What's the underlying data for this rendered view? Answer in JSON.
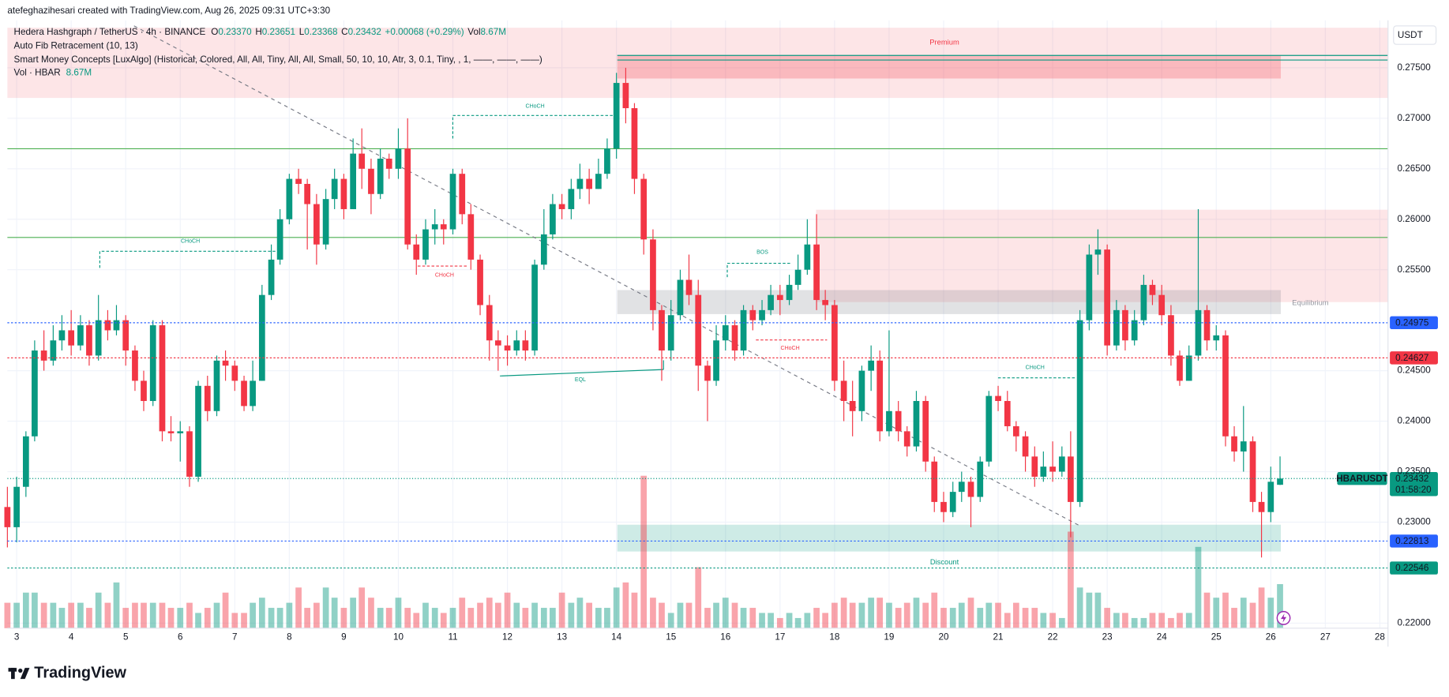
{
  "header": {
    "credit": "atefeghazihesari created with TradingView.com, Aug 26, 2025 09:31 UTC+3:30",
    "symbol": "Hedera Hashgraph / TetherUS · 4h · BINANCE",
    "ohlc": [
      {
        "label": "O",
        "value": "0.23370"
      },
      {
        "label": "H",
        "value": "0.23651"
      },
      {
        "label": "L",
        "value": "0.23368"
      },
      {
        "label": "C",
        "value": "0.23432"
      }
    ],
    "change": "+0.00068 (+0.29%)",
    "vol_label": "Vol",
    "vol": "8.67M",
    "indicators": [
      "Auto Fib Retracement (10, 13)",
      "Smart Money Concepts [LuxAlgo] (Historical, Colored, All, All, Tiny, All, All, Small, 50, 10, 10, Atr, 3, 0.1, Tiny, , 1, ——, ——, ——)"
    ],
    "vol_indicator": "Vol · HBAR",
    "vol_indicator_value": "8.67M",
    "currency": "USDT",
    "brand": "TradingView"
  },
  "chart_data": {
    "type": "candlestick",
    "colors": {
      "up": "#089981",
      "down": "#f23645"
    },
    "xlim": [
      2.83,
      28.15
    ],
    "xticks": [
      3,
      4,
      5,
      6,
      7,
      8,
      9,
      10,
      11,
      12,
      13,
      14,
      15,
      16,
      17,
      18,
      19,
      20,
      21,
      22,
      23,
      24,
      25,
      26,
      27,
      28
    ],
    "ylim": [
      0.2195,
      0.2797
    ],
    "yticks": [
      {
        "value": 0.22,
        "label": "0.22000"
      },
      {
        "value": 0.23,
        "label": "0.23000"
      },
      {
        "value": 0.235,
        "label": "0.23500"
      },
      {
        "value": 0.24,
        "label": "0.24000"
      },
      {
        "value": 0.245,
        "label": "0.24500"
      },
      {
        "value": 0.255,
        "label": "0.25500"
      },
      {
        "value": 0.26,
        "label": "0.26000"
      },
      {
        "value": 0.265,
        "label": "0.26500"
      },
      {
        "value": 0.27,
        "label": "0.27000"
      },
      {
        "value": 0.275,
        "label": "0.27500"
      }
    ],
    "grid": true,
    "candles": [
      [
        2.83,
        0.2315,
        0.2335,
        0.2275,
        0.2295
      ],
      [
        3,
        0.2295,
        0.2345,
        0.228,
        0.2335
      ],
      [
        3.17,
        0.2335,
        0.239,
        0.2325,
        0.2385
      ],
      [
        3.33,
        0.2385,
        0.248,
        0.238,
        0.247
      ],
      [
        3.5,
        0.247,
        0.249,
        0.245,
        0.246
      ],
      [
        3.67,
        0.246,
        0.2495,
        0.2455,
        0.248
      ],
      [
        3.83,
        0.248,
        0.2505,
        0.247,
        0.249
      ],
      [
        4,
        0.249,
        0.251,
        0.2465,
        0.2475
      ],
      [
        4.17,
        0.2475,
        0.2505,
        0.247,
        0.2495
      ],
      [
        4.33,
        0.2495,
        0.25,
        0.2455,
        0.2465
      ],
      [
        4.5,
        0.2465,
        0.2525,
        0.246,
        0.25
      ],
      [
        4.67,
        0.25,
        0.251,
        0.248,
        0.249
      ],
      [
        4.83,
        0.249,
        0.2515,
        0.2485,
        0.25
      ],
      [
        5,
        0.25,
        0.2505,
        0.2455,
        0.247
      ],
      [
        5.17,
        0.247,
        0.2475,
        0.243,
        0.244
      ],
      [
        5.33,
        0.244,
        0.245,
        0.241,
        0.242
      ],
      [
        5.5,
        0.242,
        0.25,
        0.2415,
        0.2495
      ],
      [
        5.67,
        0.2495,
        0.25,
        0.238,
        0.239
      ],
      [
        5.83,
        0.239,
        0.2405,
        0.238,
        0.2388
      ],
      [
        6,
        0.2388,
        0.24,
        0.236,
        0.239
      ],
      [
        6.17,
        0.239,
        0.2395,
        0.2335,
        0.2345
      ],
      [
        6.33,
        0.2345,
        0.244,
        0.234,
        0.2435
      ],
      [
        6.5,
        0.2435,
        0.2445,
        0.24,
        0.241
      ],
      [
        6.67,
        0.241,
        0.2465,
        0.2405,
        0.246
      ],
      [
        6.83,
        0.246,
        0.247,
        0.244,
        0.2455
      ],
      [
        7,
        0.2455,
        0.246,
        0.243,
        0.244
      ],
      [
        7.17,
        0.244,
        0.2445,
        0.241,
        0.2415
      ],
      [
        7.33,
        0.2415,
        0.246,
        0.241,
        0.244
      ],
      [
        7.5,
        0.244,
        0.2535,
        0.244,
        0.2525
      ],
      [
        7.67,
        0.2525,
        0.2575,
        0.252,
        0.256
      ],
      [
        7.83,
        0.256,
        0.261,
        0.2555,
        0.26
      ],
      [
        8,
        0.26,
        0.2645,
        0.2595,
        0.264
      ],
      [
        8.17,
        0.264,
        0.265,
        0.2625,
        0.2635
      ],
      [
        8.33,
        0.2635,
        0.264,
        0.257,
        0.2615
      ],
      [
        8.5,
        0.2615,
        0.2625,
        0.2555,
        0.2575
      ],
      [
        8.67,
        0.2575,
        0.263,
        0.257,
        0.262
      ],
      [
        8.83,
        0.262,
        0.265,
        0.261,
        0.264
      ],
      [
        9,
        0.264,
        0.2645,
        0.26,
        0.261
      ],
      [
        9.17,
        0.261,
        0.268,
        0.261,
        0.2665
      ],
      [
        9.33,
        0.2665,
        0.269,
        0.263,
        0.265
      ],
      [
        9.5,
        0.265,
        0.266,
        0.2605,
        0.2625
      ],
      [
        9.67,
        0.2625,
        0.267,
        0.262,
        0.266
      ],
      [
        9.83,
        0.266,
        0.2665,
        0.264,
        0.265
      ],
      [
        10,
        0.265,
        0.269,
        0.264,
        0.267
      ],
      [
        10.17,
        0.267,
        0.27,
        0.257,
        0.2575
      ],
      [
        10.33,
        0.2575,
        0.2585,
        0.2545,
        0.256
      ],
      [
        10.5,
        0.256,
        0.26,
        0.2555,
        0.259
      ],
      [
        10.67,
        0.259,
        0.261,
        0.2575,
        0.2595
      ],
      [
        10.83,
        0.2595,
        0.26,
        0.2575,
        0.259
      ],
      [
        11,
        0.259,
        0.265,
        0.2585,
        0.2645
      ],
      [
        11.17,
        0.2645,
        0.265,
        0.2595,
        0.2605
      ],
      [
        11.33,
        0.2605,
        0.2615,
        0.255,
        0.256
      ],
      [
        11.5,
        0.256,
        0.2565,
        0.2505,
        0.2515
      ],
      [
        11.67,
        0.2515,
        0.2525,
        0.246,
        0.248
      ],
      [
        11.83,
        0.248,
        0.249,
        0.245,
        0.2475
      ],
      [
        12,
        0.2475,
        0.2485,
        0.2455,
        0.247
      ],
      [
        12.17,
        0.247,
        0.249,
        0.2465,
        0.248
      ],
      [
        12.33,
        0.248,
        0.249,
        0.246,
        0.247
      ],
      [
        12.5,
        0.247,
        0.256,
        0.2465,
        0.2555
      ],
      [
        12.67,
        0.2555,
        0.261,
        0.255,
        0.2585
      ],
      [
        12.83,
        0.2585,
        0.2625,
        0.258,
        0.2615
      ],
      [
        13,
        0.2615,
        0.2625,
        0.26,
        0.261
      ],
      [
        13.17,
        0.261,
        0.264,
        0.26,
        0.263
      ],
      [
        13.33,
        0.263,
        0.2655,
        0.262,
        0.264
      ],
      [
        13.5,
        0.264,
        0.265,
        0.2615,
        0.263
      ],
      [
        13.67,
        0.263,
        0.266,
        0.263,
        0.2645
      ],
      [
        13.83,
        0.2645,
        0.268,
        0.264,
        0.267
      ],
      [
        14,
        0.267,
        0.2745,
        0.266,
        0.2735
      ],
      [
        14.17,
        0.2735,
        0.275,
        0.2695,
        0.271
      ],
      [
        14.33,
        0.271,
        0.2715,
        0.2625,
        0.264
      ],
      [
        14.5,
        0.264,
        0.2645,
        0.2565,
        0.258
      ],
      [
        14.67,
        0.258,
        0.259,
        0.249,
        0.251
      ],
      [
        14.83,
        0.251,
        0.2515,
        0.244,
        0.247
      ],
      [
        15,
        0.247,
        0.252,
        0.246,
        0.2505
      ],
      [
        15.17,
        0.2505,
        0.255,
        0.25,
        0.254
      ],
      [
        15.33,
        0.254,
        0.2565,
        0.2515,
        0.2525
      ],
      [
        15.5,
        0.2525,
        0.254,
        0.243,
        0.2455
      ],
      [
        15.67,
        0.2455,
        0.246,
        0.24,
        0.244
      ],
      [
        15.83,
        0.244,
        0.2495,
        0.2435,
        0.248
      ],
      [
        16,
        0.248,
        0.2505,
        0.247,
        0.2495
      ],
      [
        16.17,
        0.2495,
        0.25,
        0.246,
        0.247
      ],
      [
        16.33,
        0.247,
        0.2515,
        0.2465,
        0.251
      ],
      [
        16.5,
        0.251,
        0.2515,
        0.249,
        0.25
      ],
      [
        16.67,
        0.25,
        0.252,
        0.2495,
        0.251
      ],
      [
        16.83,
        0.251,
        0.2535,
        0.2505,
        0.2525
      ],
      [
        17,
        0.2525,
        0.2535,
        0.2505,
        0.252
      ],
      [
        17.17,
        0.252,
        0.2545,
        0.2515,
        0.2535
      ],
      [
        17.33,
        0.2535,
        0.2565,
        0.253,
        0.255
      ],
      [
        17.5,
        0.255,
        0.26,
        0.2545,
        0.2575
      ],
      [
        17.67,
        0.2575,
        0.2605,
        0.251,
        0.252
      ],
      [
        17.83,
        0.252,
        0.253,
        0.25,
        0.2515
      ],
      [
        18,
        0.2515,
        0.252,
        0.243,
        0.244
      ],
      [
        18.17,
        0.244,
        0.246,
        0.24,
        0.242
      ],
      [
        18.33,
        0.242,
        0.244,
        0.2385,
        0.241
      ],
      [
        18.5,
        0.241,
        0.2455,
        0.24,
        0.245
      ],
      [
        18.67,
        0.245,
        0.2475,
        0.243,
        0.246
      ],
      [
        18.83,
        0.246,
        0.247,
        0.238,
        0.239
      ],
      [
        19,
        0.239,
        0.249,
        0.2385,
        0.241
      ],
      [
        19.17,
        0.241,
        0.242,
        0.238,
        0.239
      ],
      [
        19.33,
        0.239,
        0.2395,
        0.2365,
        0.2375
      ],
      [
        19.5,
        0.2375,
        0.243,
        0.237,
        0.242
      ],
      [
        19.67,
        0.242,
        0.2425,
        0.235,
        0.236
      ],
      [
        19.83,
        0.236,
        0.2365,
        0.231,
        0.232
      ],
      [
        20,
        0.232,
        0.233,
        0.23,
        0.231
      ],
      [
        20.17,
        0.231,
        0.234,
        0.2305,
        0.233
      ],
      [
        20.33,
        0.233,
        0.235,
        0.232,
        0.234
      ],
      [
        20.5,
        0.234,
        0.2345,
        0.2295,
        0.2325
      ],
      [
        20.67,
        0.2325,
        0.2365,
        0.232,
        0.236
      ],
      [
        20.83,
        0.236,
        0.243,
        0.2355,
        0.2425
      ],
      [
        21,
        0.2425,
        0.2435,
        0.241,
        0.242
      ],
      [
        21.17,
        0.242,
        0.243,
        0.239,
        0.2395
      ],
      [
        21.33,
        0.2395,
        0.24,
        0.237,
        0.2385
      ],
      [
        21.5,
        0.2385,
        0.239,
        0.235,
        0.2365
      ],
      [
        21.67,
        0.2365,
        0.2375,
        0.2335,
        0.2345
      ],
      [
        21.83,
        0.2345,
        0.237,
        0.234,
        0.2355
      ],
      [
        22,
        0.2355,
        0.238,
        0.234,
        0.235
      ],
      [
        22.17,
        0.235,
        0.2375,
        0.2345,
        0.2365
      ],
      [
        22.33,
        0.2365,
        0.239,
        0.2285,
        0.232
      ],
      [
        22.5,
        0.232,
        0.251,
        0.2315,
        0.25
      ],
      [
        22.67,
        0.25,
        0.2575,
        0.249,
        0.2565
      ],
      [
        22.83,
        0.2565,
        0.259,
        0.2545,
        0.257
      ],
      [
        23,
        0.257,
        0.2575,
        0.2465,
        0.2475
      ],
      [
        23.17,
        0.2475,
        0.252,
        0.247,
        0.251
      ],
      [
        23.33,
        0.251,
        0.2515,
        0.247,
        0.248
      ],
      [
        23.5,
        0.248,
        0.251,
        0.2475,
        0.25
      ],
      [
        23.67,
        0.25,
        0.2545,
        0.2495,
        0.2535
      ],
      [
        23.83,
        0.2535,
        0.254,
        0.2515,
        0.2525
      ],
      [
        24,
        0.2525,
        0.2535,
        0.2495,
        0.2505
      ],
      [
        24.17,
        0.2505,
        0.2515,
        0.2455,
        0.2465
      ],
      [
        24.33,
        0.2465,
        0.247,
        0.2435,
        0.244
      ],
      [
        24.5,
        0.244,
        0.2475,
        0.244,
        0.2465
      ],
      [
        24.67,
        0.2465,
        0.261,
        0.246,
        0.251
      ],
      [
        24.83,
        0.251,
        0.2515,
        0.247,
        0.248
      ],
      [
        25,
        0.248,
        0.2495,
        0.247,
        0.2485
      ],
      [
        25.17,
        0.2485,
        0.249,
        0.2375,
        0.2385
      ],
      [
        25.33,
        0.2385,
        0.2395,
        0.236,
        0.237
      ],
      [
        25.5,
        0.237,
        0.2415,
        0.235,
        0.238
      ],
      [
        25.67,
        0.238,
        0.2385,
        0.231,
        0.232
      ],
      [
        25.83,
        0.232,
        0.233,
        0.2265,
        0.231
      ],
      [
        26,
        0.231,
        0.2355,
        0.23,
        0.234
      ],
      [
        26.17,
        0.2337,
        0.23651,
        0.23368,
        0.23432
      ]
    ],
    "volume": [
      5,
      5,
      7,
      7,
      5,
      5,
      4,
      5,
      5,
      4,
      7,
      5,
      9,
      4,
      5,
      5,
      5,
      5,
      4,
      4,
      5,
      3,
      4,
      5,
      7,
      3,
      3,
      5,
      6,
      4,
      4,
      5,
      8,
      4,
      5,
      8,
      6,
      4,
      6,
      8,
      6,
      4,
      4,
      6,
      4,
      3,
      5,
      4,
      3,
      4,
      6,
      4,
      5,
      6,
      5,
      7,
      5,
      4,
      5,
      4,
      4,
      7,
      5,
      6,
      5,
      4,
      4,
      8,
      9,
      7,
      30,
      6,
      5,
      3,
      5,
      5,
      12,
      4,
      5,
      6,
      5,
      4,
      4,
      3,
      3,
      2,
      3,
      2,
      3,
      4,
      3,
      5,
      6,
      5,
      5,
      6,
      6,
      5,
      4,
      5,
      6,
      5,
      7,
      4,
      4,
      5,
      6,
      4,
      5,
      5,
      3,
      5,
      4,
      4,
      3,
      3,
      2,
      19,
      8,
      7,
      7,
      4,
      3,
      3,
      2,
      2,
      3,
      3,
      2,
      3,
      3,
      16,
      7,
      6,
      7,
      4,
      6,
      5,
      8,
      6,
      8.67
    ],
    "price_lines": [
      {
        "value": 0.24975,
        "color": "#2962ff"
      },
      {
        "value": 0.24627,
        "color": "#f23645"
      },
      {
        "value": 0.22813,
        "color": "#2962ff"
      },
      {
        "value": 0.22546,
        "color": "#089981"
      }
    ],
    "last": {
      "symbol": "HBARUSDT",
      "value": 0.23432,
      "countdown": "01:58:20",
      "color": "#089981"
    },
    "labels": [
      "CHoCH",
      "CHoCH",
      "CHoCH",
      "BOS",
      "CHoCH",
      "CHoCH",
      "EQL",
      "Premium",
      "Equilibrium",
      "Discount"
    ]
  }
}
